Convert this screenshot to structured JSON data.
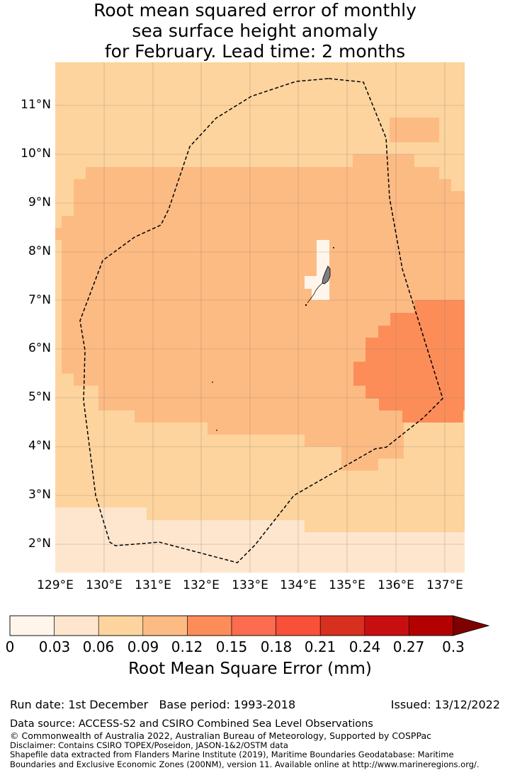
{
  "title": {
    "line1": "Root mean squared error of monthly",
    "line2": "sea surface height anomaly",
    "line3": "for February. Lead time: 2 months"
  },
  "map": {
    "lon_range": [
      129.0,
      137.4
    ],
    "lat_range": [
      1.4,
      11.85
    ],
    "lat_ticks": [
      "11°N",
      "10°N",
      "9°N",
      "8°N",
      "7°N",
      "6°N",
      "5°N",
      "4°N",
      "3°N",
      "2°N"
    ],
    "lon_ticks": [
      "129°E",
      "130°E",
      "131°E",
      "132°E",
      "133°E",
      "134°E",
      "135°E",
      "136°E",
      "137°E"
    ],
    "gridlines": true,
    "eez_boundary": "dashed black",
    "land_color": "#808080"
  },
  "colorbar": {
    "ticks": [
      "0",
      "0.03",
      "0.06",
      "0.09",
      "0.12",
      "0.15",
      "0.18",
      "0.21",
      "0.24",
      "0.27",
      "0.3"
    ],
    "colors": [
      "#fff5eb",
      "#fee6ce",
      "#fdd49e",
      "#fdbb84",
      "#fc8d59",
      "#fc6c4e",
      "#f9503a",
      "#d7301f",
      "#c80f0f",
      "#b30000"
    ],
    "extend_color": "#7f0000",
    "label": "Root Mean Square Error (mm)"
  },
  "footer": {
    "run_date": "Run date: 1st December",
    "base_period": "Base period: 1993-2018",
    "issued": "Issued: 13/12/2022",
    "data_source": "Data source: ACCESS-S2 and CSIRO Combined Sea Level Observations",
    "copyright": "© Commonwealth of Australia 2022, Australian Bureau of Meteorology, Supported by COSPPac",
    "disclaimer": "Disclaimer: Contains CSIRO TOPEX/Poseidon, JASON-1&2/OSTM data",
    "shapefile1": "Shapefile data extracted from Flanders Marine Institute (2019), Maritime Boundaries Geodatabase: Maritime",
    "shapefile2": "Boundaries and Exclusive Economic Zones (200NM), version 11. Available online at http://www.marineregions.org/."
  }
}
